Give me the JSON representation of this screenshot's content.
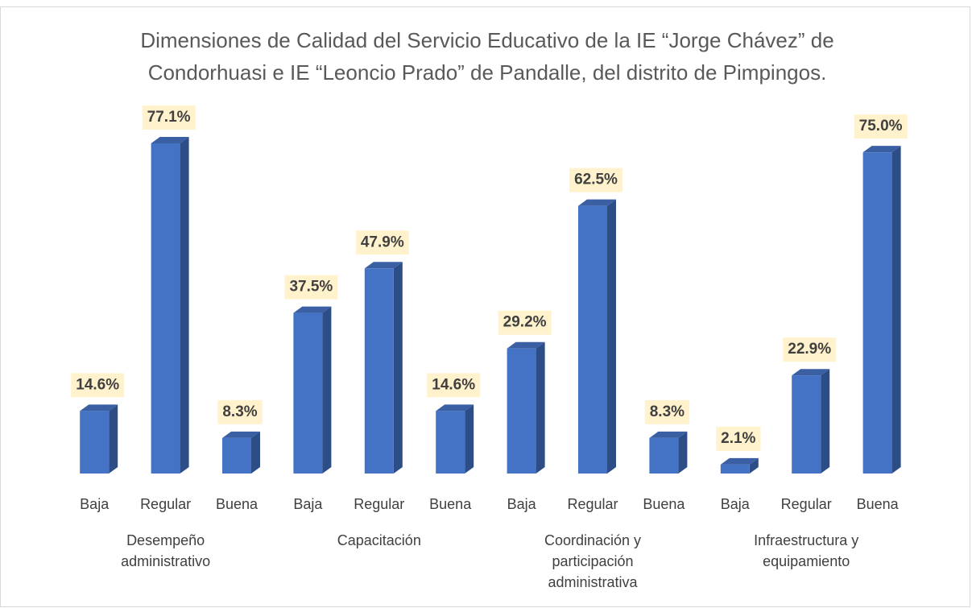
{
  "chart_data": {
    "type": "bar",
    "title": "Dimensiones de Calidad del Servicio Educativo de la IE “Jorge Chávez” de Condorhuasi e IE “Leoncio Prado” de Pandalle, del distrito de Pimpingos.",
    "color": "#4472c4",
    "label_background": "#fff2cc",
    "groups": [
      {
        "name": "Desempeño administrativo",
        "categories": [
          "Baja",
          "Regular",
          "Buena"
        ],
        "values": [
          14.6,
          77.1,
          8.3
        ],
        "value_labels": [
          "14.6%",
          "77.1%",
          "8.3%"
        ]
      },
      {
        "name": "Capacitación",
        "categories": [
          "Baja",
          "Regular",
          "Buena"
        ],
        "values": [
          37.5,
          47.9,
          14.6
        ],
        "value_labels": [
          "37.5%",
          "47.9%",
          "14.6%"
        ]
      },
      {
        "name": "Coordinación y participación administrativa",
        "categories": [
          "Baja",
          "Regular",
          "Buena"
        ],
        "values": [
          29.2,
          62.5,
          8.3
        ],
        "value_labels": [
          "29.2%",
          "62.5%",
          "8.3%"
        ]
      },
      {
        "name": "Infraestructura y equipamiento",
        "categories": [
          "Baja",
          "Regular",
          "Buena"
        ],
        "values": [
          2.1,
          22.9,
          75.0
        ],
        "value_labels": [
          "2.1%",
          "22.9%",
          "75.0%"
        ]
      }
    ]
  }
}
